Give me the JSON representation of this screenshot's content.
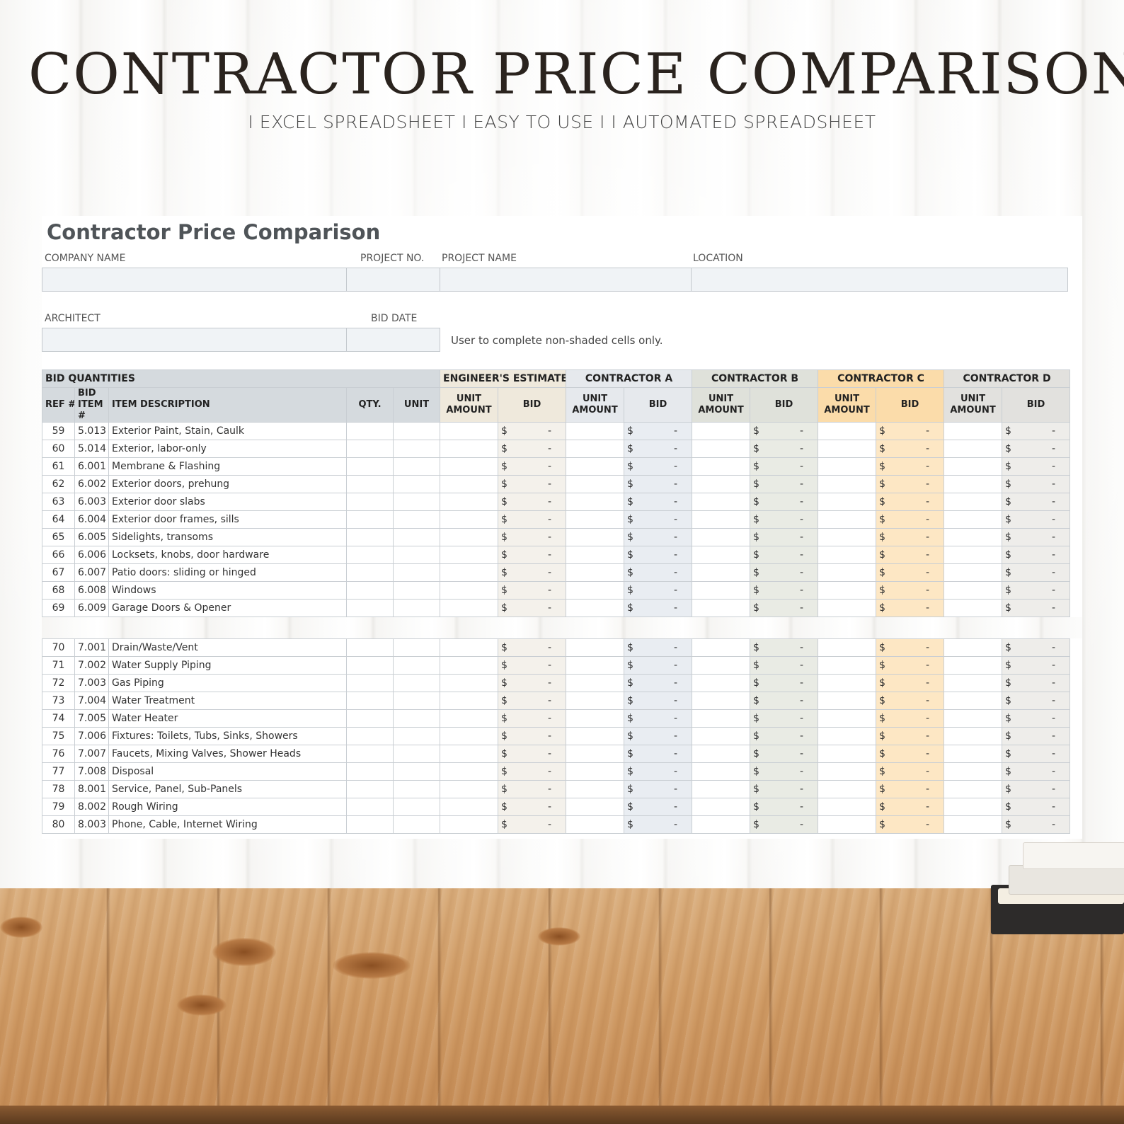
{
  "headline": "CONTRACTOR PRICE COMPARISON",
  "subline": "I EXCEL SPREADSHEET  I EASY TO USE I  I AUTOMATED SPREADSHEET",
  "sheet": {
    "title": "Contractor Price Comparison",
    "labels": {
      "company": "COMPANY NAME",
      "project_no": "PROJECT NO.",
      "project_name": "PROJECT NAME",
      "location": "LOCATION",
      "architect": "ARCHITECT",
      "bid_date": "BID DATE"
    },
    "note": "User to complete non-shaded cells only.",
    "groups": {
      "bid_quantities": "BID QUANTITIES",
      "engineer": "ENGINEER'S ESTIMATE",
      "a": "CONTRACTOR A",
      "b": "CONTRACTOR B",
      "c": "CONTRACTOR C",
      "d": "CONTRACTOR D"
    },
    "columns": {
      "ref": "REF #",
      "bid_item": "BID ITEM #",
      "desc": "ITEM DESCRIPTION",
      "qty": "QTY.",
      "unit": "UNIT",
      "unit_amount": "UNIT AMOUNT",
      "bid": "BID"
    },
    "currency": "$",
    "empty_value": "-",
    "rows_top": [
      {
        "ref": "59",
        "item": "5.013",
        "desc": "Exterior Paint, Stain, Caulk"
      },
      {
        "ref": "60",
        "item": "5.014",
        "desc": "Exterior, labor-only"
      },
      {
        "ref": "61",
        "item": "6.001",
        "desc": "Membrane & Flashing"
      },
      {
        "ref": "62",
        "item": "6.002",
        "desc": "Exterior doors, prehung"
      },
      {
        "ref": "63",
        "item": "6.003",
        "desc": "Exterior door slabs"
      },
      {
        "ref": "64",
        "item": "6.004",
        "desc": "Exterior door frames, sills"
      },
      {
        "ref": "65",
        "item": "6.005",
        "desc": "Sidelights, transoms"
      },
      {
        "ref": "66",
        "item": "6.006",
        "desc": "Locksets, knobs, door hardware"
      },
      {
        "ref": "67",
        "item": "6.007",
        "desc": "Patio doors: sliding or hinged"
      },
      {
        "ref": "68",
        "item": "6.008",
        "desc": "Windows"
      },
      {
        "ref": "69",
        "item": "6.009",
        "desc": "Garage Doors & Opener"
      }
    ],
    "rows_bottom": [
      {
        "ref": "70",
        "item": "7.001",
        "desc": "Drain/Waste/Vent"
      },
      {
        "ref": "71",
        "item": "7.002",
        "desc": "Water Supply Piping"
      },
      {
        "ref": "72",
        "item": "7.003",
        "desc": "Gas Piping"
      },
      {
        "ref": "73",
        "item": "7.004",
        "desc": "Water Treatment"
      },
      {
        "ref": "74",
        "item": "7.005",
        "desc": "Water Heater"
      },
      {
        "ref": "75",
        "item": "7.006",
        "desc": "Fixtures: Toilets, Tubs, Sinks, Showers"
      },
      {
        "ref": "76",
        "item": "7.007",
        "desc": "Faucets, Mixing Valves, Shower Heads"
      },
      {
        "ref": "77",
        "item": "7.008",
        "desc": "Disposal"
      },
      {
        "ref": "78",
        "item": "8.001",
        "desc": "Service, Panel, Sub-Panels"
      },
      {
        "ref": "79",
        "item": "8.002",
        "desc": "Rough Wiring"
      },
      {
        "ref": "80",
        "item": "8.003",
        "desc": "Phone, Cable, Internet Wiring"
      }
    ]
  },
  "colors": {
    "contractor_c_header": "#fbdcaa",
    "bid_quantities_header": "#d5dade"
  }
}
